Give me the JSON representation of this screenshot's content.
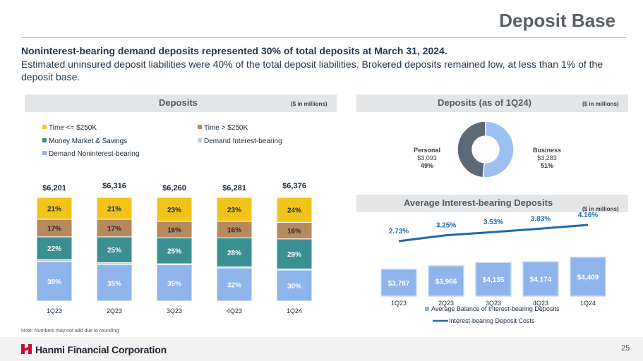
{
  "page": {
    "title": "Deposit Base",
    "headline": "Noninterest-bearing demand deposits represented 30% of total deposits at March 31, 2024.",
    "subtext": "Estimated uninsured deposit liabilities were 40% of the total deposit liabilities. Brokered deposits remained low, at less than 1% of the deposit base.",
    "note": "Note: Numbers may not add due to rounding",
    "company": "Hanmi Financial Corporation",
    "page_number": "25"
  },
  "colors": {
    "time_le": "#f2c318",
    "time_gt": "#b78a5e",
    "mmsav": "#3a8f92",
    "demand_ib": "#c8ccd0",
    "demand_nib": "#8fb4ec",
    "business": "#9cc0f2",
    "personal": "#5c6a78",
    "line": "#1f6aa8",
    "brand_red": "#c8102e"
  },
  "chart_data": [
    {
      "type": "bar",
      "title": "Deposits",
      "unit_note": "($ in millions)",
      "categories": [
        "1Q23",
        "2Q23",
        "3Q23",
        "4Q23",
        "1Q24"
      ],
      "totals": [
        "$6,201",
        "$6,316",
        "$6,260",
        "$6,281",
        "$6,376"
      ],
      "total_values": [
        6201,
        6316,
        6260,
        6281,
        6376
      ],
      "series": [
        {
          "name": "Demand Noninterest-bearing",
          "key": "demand_nib",
          "values": [
            38,
            35,
            35,
            32,
            30
          ],
          "labels": [
            "38%",
            "35%",
            "35%",
            "32%",
            "30%"
          ]
        },
        {
          "name": "Demand Interest-bearing",
          "key": "demand_ib",
          "values": [
            2,
            2,
            1,
            1,
            1
          ],
          "labels": [
            "2%",
            "2%",
            "1%",
            "1%",
            "1%"
          ]
        },
        {
          "name": "Money Market & Savings",
          "key": "mmsav",
          "values": [
            22,
            25,
            25,
            28,
            29
          ],
          "labels": [
            "22%",
            "25%",
            "25%",
            "28%",
            "29%"
          ]
        },
        {
          "name": "Time > $250K",
          "key": "time_gt",
          "values": [
            17,
            17,
            16,
            16,
            16
          ],
          "labels": [
            "17%",
            "17%",
            "16%",
            "16%",
            "16%"
          ]
        },
        {
          "name": "Time <= $250K",
          "key": "time_le",
          "values": [
            21,
            21,
            23,
            23,
            24
          ],
          "labels": [
            "21%",
            "21%",
            "23%",
            "23%",
            "24%"
          ]
        }
      ],
      "legend_order": [
        "time_le",
        "time_gt",
        "mmsav",
        "demand_ib",
        "demand_nib"
      ]
    },
    {
      "type": "pie",
      "title": "Deposits (as of 1Q24)",
      "unit_note": "($ in millions)",
      "slices": [
        {
          "name": "Business",
          "value": 3283,
          "value_label": "$3,283",
          "percent": "51%",
          "key": "business"
        },
        {
          "name": "Personal",
          "value": 3093,
          "value_label": "$3,093",
          "percent": "49%",
          "key": "personal"
        }
      ]
    },
    {
      "type": "bar",
      "title": "Average Interest-bearing Deposits",
      "unit_note": "($ in millions)",
      "categories": [
        "1Q23",
        "2Q23",
        "3Q23",
        "4Q23",
        "1Q24"
      ],
      "series": [
        {
          "name": "Average Balance of Interest-bearing Deposits",
          "type": "bar",
          "values": [
            3787,
            3966,
            4135,
            4174,
            4409
          ],
          "labels": [
            "$3,787",
            "$3,966",
            "$4,135",
            "$4,174",
            "$4,409"
          ]
        },
        {
          "name": "Interest-bearing Deposit Costs",
          "type": "line",
          "values": [
            2.73,
            3.25,
            3.53,
            3.83,
            4.16
          ],
          "labels": [
            "2.73%",
            "3.25%",
            "3.53%",
            "3.83%",
            "4.16%"
          ]
        }
      ]
    }
  ]
}
